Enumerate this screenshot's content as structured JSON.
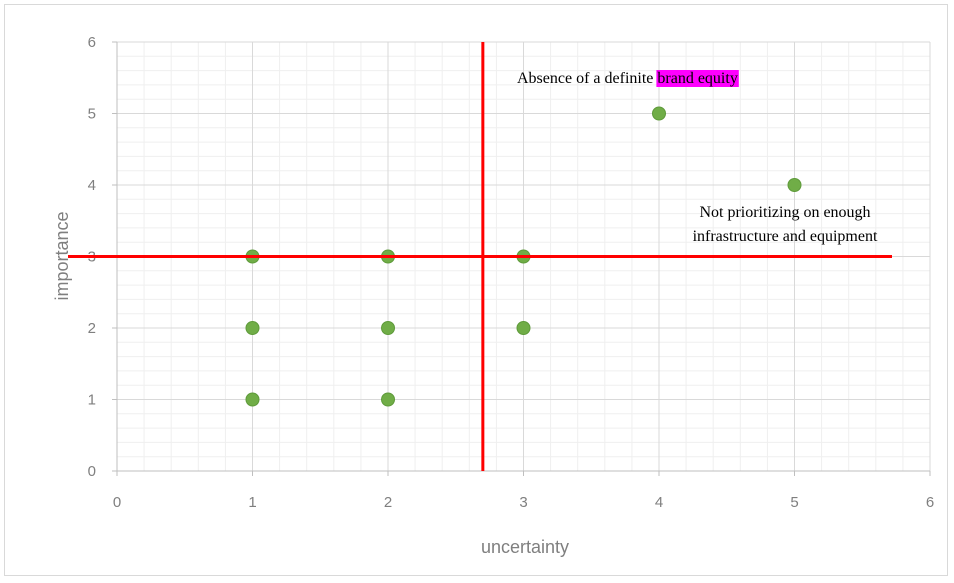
{
  "chart_data": {
    "type": "scatter",
    "xlabel": "uncertainty",
    "ylabel": "importance",
    "xlim": [
      0,
      6
    ],
    "ylim": [
      0,
      6
    ],
    "x_ticks": [
      "0",
      "1",
      "2",
      "3",
      "4",
      "5",
      "6"
    ],
    "y_ticks": [
      "0",
      "1",
      "2",
      "3",
      "4",
      "5",
      "6"
    ],
    "grid": true,
    "points": [
      {
        "x": 1,
        "y": 3
      },
      {
        "x": 1,
        "y": 2
      },
      {
        "x": 1,
        "y": 1
      },
      {
        "x": 2,
        "y": 3
      },
      {
        "x": 2,
        "y": 2
      },
      {
        "x": 2,
        "y": 1
      },
      {
        "x": 3,
        "y": 3
      },
      {
        "x": 3,
        "y": 2
      },
      {
        "x": 4,
        "y": 5
      },
      {
        "x": 5,
        "y": 4
      }
    ],
    "reference_lines": {
      "vertical_x": 2.7,
      "horizontal_y": 3
    },
    "annotations": {
      "brand": {
        "prefix": "Absence of a definite ",
        "highlight": "brand equity"
      },
      "infra": {
        "line1": "Not prioritizing on enough",
        "line2": "infrastructure and equipment"
      }
    },
    "colors": {
      "marker": "#70ad47",
      "reference_line": "#ff0000",
      "highlight": "#ff00ff",
      "grid_major": "#d9d9d9",
      "grid_minor": "#efefef"
    }
  }
}
